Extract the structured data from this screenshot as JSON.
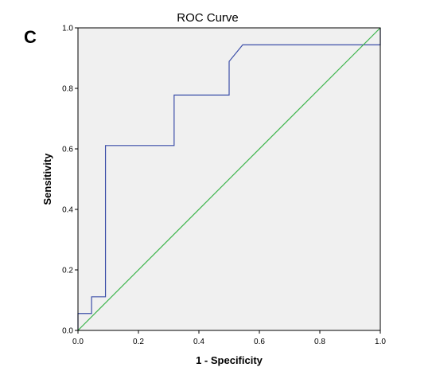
{
  "panel_label": "C",
  "chart_data": {
    "type": "line",
    "title": "ROC Curve",
    "xlabel": "1 - Specificity",
    "ylabel": "Sensitivity",
    "xlim": [
      0,
      1
    ],
    "ylim": [
      0,
      1
    ],
    "x_ticks": [
      "0.0",
      "0.2",
      "0.4",
      "0.6",
      "0.8",
      "1.0"
    ],
    "y_ticks": [
      "0.0",
      "0.2",
      "0.4",
      "0.6",
      "0.8",
      "1.0"
    ],
    "x_tick_values": [
      0,
      0.2,
      0.4,
      0.6,
      0.8,
      1.0
    ],
    "y_tick_values": [
      0,
      0.2,
      0.4,
      0.6,
      0.8,
      1.0
    ],
    "grid": false,
    "plot_background": "#f0f0f0",
    "series": [
      {
        "color": "#3b4ea8",
        "x": [
          0,
          0,
          0.045,
          0.045,
          0.091,
          0.091,
          0.318,
          0.318,
          0.5,
          0.5,
          0.545,
          1.0,
          1.0
        ],
        "y": [
          0,
          0.056,
          0.056,
          0.111,
          0.111,
          0.611,
          0.611,
          0.778,
          0.778,
          0.889,
          0.944,
          0.944,
          1.0
        ]
      },
      {
        "color": "#3cb44b",
        "x": [
          0,
          1
        ],
        "y": [
          0,
          1
        ]
      }
    ]
  }
}
